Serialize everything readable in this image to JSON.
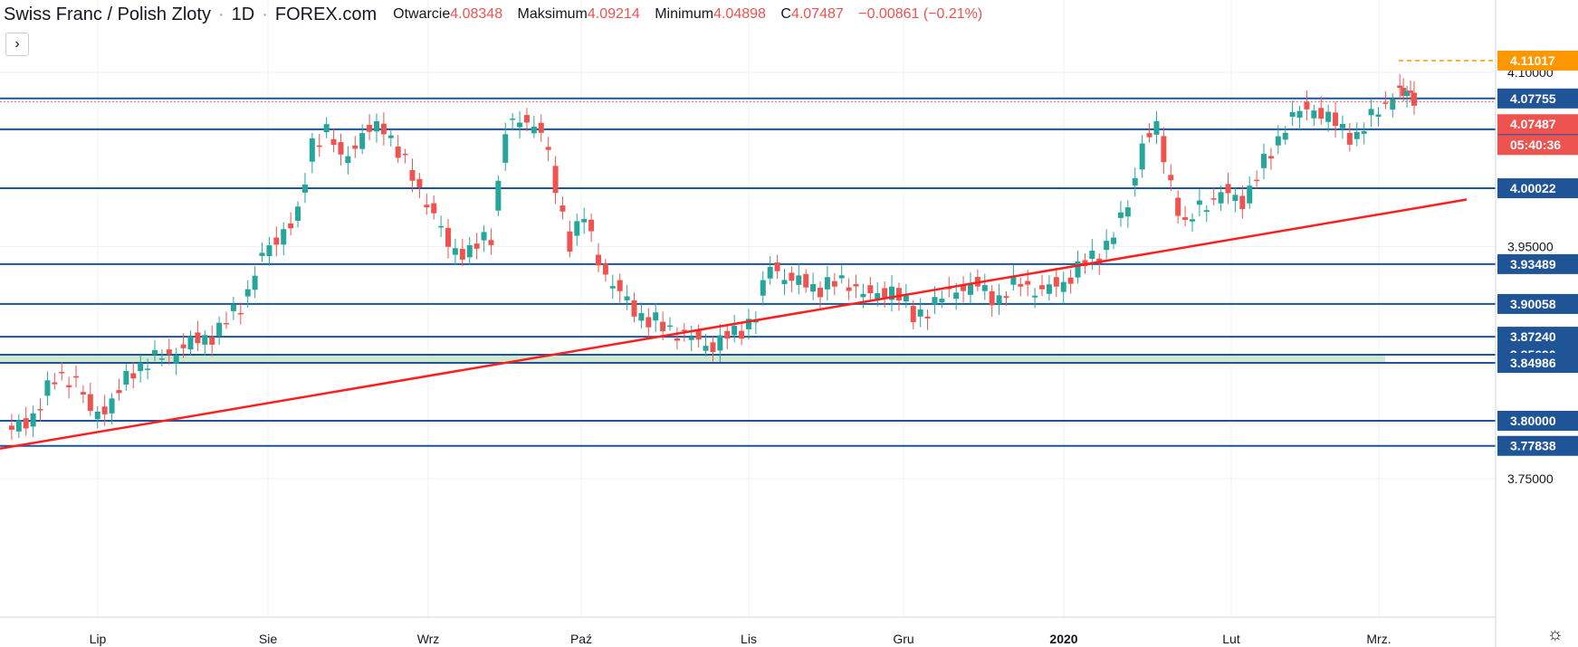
{
  "header": {
    "symbol": "Swiss Franc / Polish Zloty",
    "interval": "1D",
    "exchange": "FOREX.com",
    "open_label": "Otwarcie",
    "open_value": "4.08348",
    "high_label": "Maksimum",
    "high_value": "4.09214",
    "low_label": "Minimum",
    "low_value": "4.04898",
    "close_label": "C",
    "close_value": "4.07487",
    "change": "−0.00861 (−0.21%)"
  },
  "controls": {
    "toggle_icon": "chevron-right-icon",
    "toggle_glyph": "›",
    "settings_icon": "gear-icon",
    "settings_glyph": "☼"
  },
  "chart_data": {
    "type": "candlestick",
    "title": "Swiss Franc / Polish Zloty",
    "interval": "1D",
    "x_ticks": [
      "Lip",
      "Sie",
      "Wrz",
      "Paź",
      "Lis",
      "Gru",
      "2020",
      "Lut",
      "Mrz."
    ],
    "y_ticks": [
      "3.75000",
      "3.80000",
      "3.95000",
      "4.00022",
      "4.05105",
      "4.10000"
    ],
    "ylim": [
      3.745,
      4.12
    ],
    "grid": true,
    "up_color": "#26a69a",
    "down_color": "#ef5350",
    "horizontal_levels": [
      {
        "label": "4.07755",
        "value": 4.07755
      },
      {
        "label": "4.05105",
        "value": 4.05105
      },
      {
        "label": "4.00022",
        "value": 4.00022
      },
      {
        "label": "3.93489",
        "value": 3.93489
      },
      {
        "label": "3.90058",
        "value": 3.90058
      },
      {
        "label": "3.87240",
        "value": 3.8724
      },
      {
        "label": "3.85690",
        "value": 3.8569
      },
      {
        "label": "3.84986",
        "value": 3.84986
      },
      {
        "label": "3.80000",
        "value": 3.8
      },
      {
        "label": "3.77838",
        "value": 3.77838
      }
    ],
    "level_color": "#1f5597",
    "zone": {
      "from": 3.84986,
      "to": 3.8569,
      "color": "#c8e6c9"
    },
    "trendline": {
      "from_value": 3.776,
      "to_value": 3.9905,
      "color": "#ff1e1e"
    },
    "price_labels": [
      {
        "label": "4.11017",
        "value": 4.11017,
        "color": "#ff9800",
        "note": "high"
      },
      {
        "label": "4.07487",
        "value": 4.07487,
        "color": "#ef5350",
        "note": "last"
      },
      {
        "label": "05:40:36",
        "color": "#ef5350",
        "note": "countdown"
      }
    ],
    "waypoints": [
      [
        0,
        3.785
      ],
      [
        8,
        3.805
      ],
      [
        15,
        3.84
      ],
      [
        20,
        3.835
      ],
      [
        24,
        3.806
      ],
      [
        30,
        3.815
      ],
      [
        36,
        3.845
      ],
      [
        44,
        3.855
      ],
      [
        55,
        3.87
      ],
      [
        60,
        3.878
      ],
      [
        66,
        3.9
      ],
      [
        72,
        3.94
      ],
      [
        78,
        3.965
      ],
      [
        82,
        3.975
      ],
      [
        86,
        4.04
      ],
      [
        90,
        4.05
      ],
      [
        94,
        4.025
      ],
      [
        100,
        4.045
      ],
      [
        106,
        4.055
      ],
      [
        112,
        4.02
      ],
      [
        118,
        3.99
      ],
      [
        124,
        3.95
      ],
      [
        130,
        3.945
      ],
      [
        136,
        3.96
      ],
      [
        140,
        4.05
      ],
      [
        146,
        4.06
      ],
      [
        150,
        4.05
      ],
      [
        154,
        4.0
      ],
      [
        158,
        3.955
      ],
      [
        162,
        3.975
      ],
      [
        166,
        3.94
      ],
      [
        170,
        3.915
      ],
      [
        175,
        3.9
      ],
      [
        180,
        3.885
      ],
      [
        186,
        3.88
      ],
      [
        192,
        3.87
      ],
      [
        198,
        3.865
      ],
      [
        204,
        3.875
      ],
      [
        210,
        3.89
      ],
      [
        214,
        3.935
      ],
      [
        220,
        3.92
      ],
      [
        228,
        3.915
      ],
      [
        236,
        3.92
      ],
      [
        242,
        3.905
      ],
      [
        248,
        3.915
      ],
      [
        254,
        3.89
      ],
      [
        260,
        3.9
      ],
      [
        266,
        3.915
      ],
      [
        272,
        3.915
      ],
      [
        278,
        3.905
      ],
      [
        284,
        3.92
      ],
      [
        290,
        3.91
      ],
      [
        296,
        3.92
      ],
      [
        302,
        3.935
      ],
      [
        306,
        3.945
      ],
      [
        310,
        3.96
      ],
      [
        314,
        3.985
      ],
      [
        318,
        4.04
      ],
      [
        322,
        4.05
      ],
      [
        326,
        4.005
      ],
      [
        330,
        3.965
      ],
      [
        334,
        3.985
      ],
      [
        340,
        3.995
      ],
      [
        346,
        3.99
      ],
      [
        352,
        4.02
      ],
      [
        358,
        4.055
      ],
      [
        362,
        4.065
      ],
      [
        366,
        4.07
      ],
      [
        370,
        4.06
      ],
      [
        374,
        4.05
      ],
      [
        378,
        4.045
      ],
      [
        382,
        4.06
      ],
      [
        386,
        4.075
      ],
      [
        390,
        4.085
      ],
      [
        393,
        4.075
      ]
    ]
  }
}
